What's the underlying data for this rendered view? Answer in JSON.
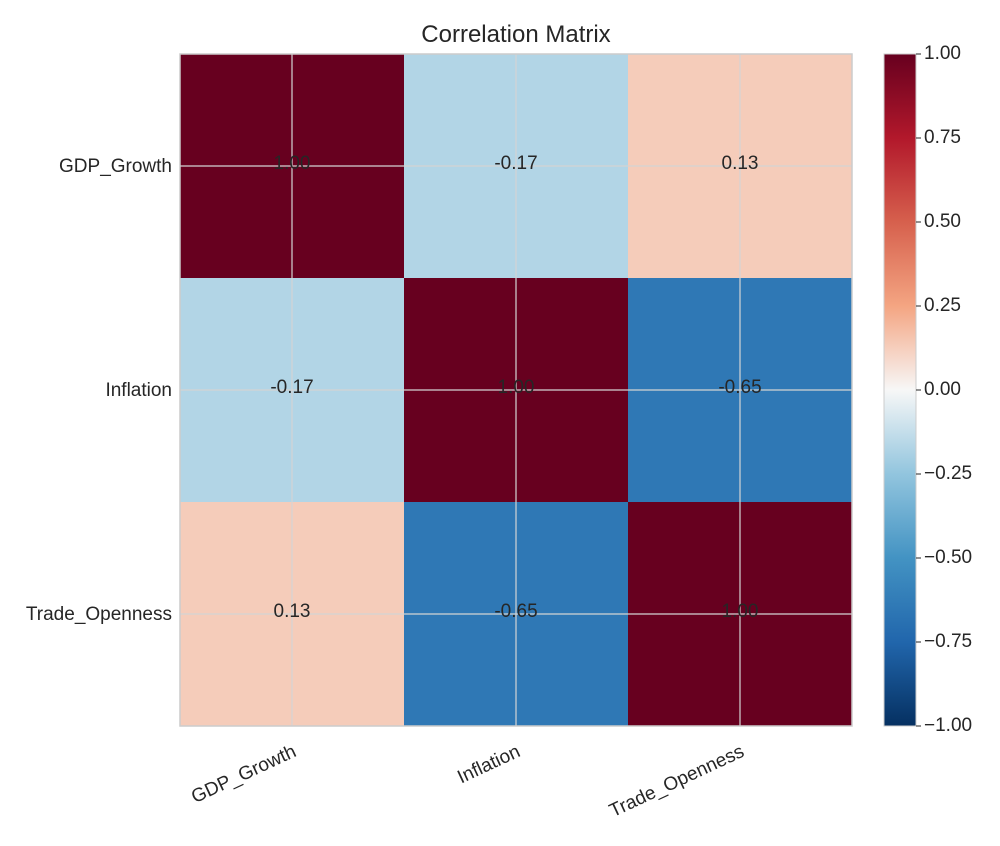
{
  "chart_data": {
    "type": "heatmap",
    "title": "Correlation Matrix",
    "x_labels": [
      "GDP_Growth",
      "Inflation",
      "Trade_Openness"
    ],
    "y_labels": [
      "GDP_Growth",
      "Inflation",
      "Trade_Openness"
    ],
    "values": [
      [
        1.0,
        -0.17,
        0.13
      ],
      [
        -0.17,
        1.0,
        -0.65
      ],
      [
        0.13,
        -0.65,
        1.0
      ]
    ],
    "cell_labels": [
      [
        "1.00",
        "-0.17",
        "0.13"
      ],
      [
        "-0.17",
        "1.00",
        "-0.65"
      ],
      [
        "0.13",
        "-0.65",
        "1.00"
      ]
    ],
    "colormap": "RdBu_r",
    "vmin": -1.0,
    "vmax": 1.0,
    "colorbar_ticks": [
      "1.00",
      "0.75",
      "0.50",
      "0.25",
      "0.00",
      "−0.25",
      "−0.50",
      "−0.75",
      "−1.00"
    ],
    "grid": true
  }
}
